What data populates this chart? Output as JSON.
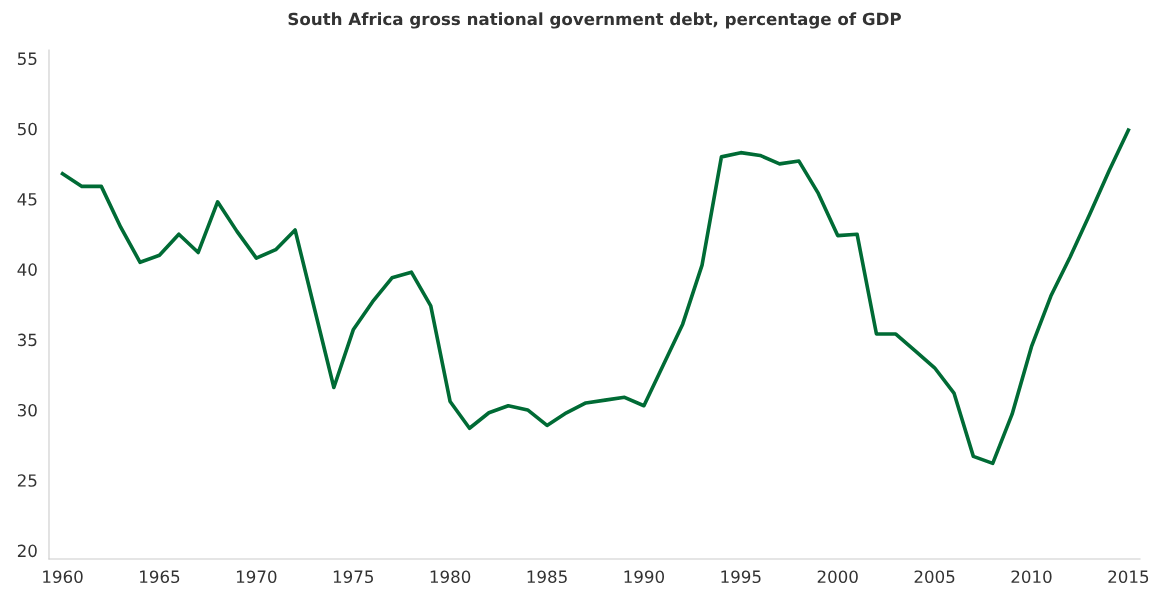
{
  "chart_data": {
    "type": "line",
    "title": "South Africa gross national government debt, percentage of GDP",
    "x": [
      1960,
      1961,
      1962,
      1963,
      1964,
      1965,
      1966,
      1967,
      1968,
      1969,
      1970,
      1971,
      1972,
      1973,
      1974,
      1975,
      1976,
      1977,
      1978,
      1979,
      1980,
      1981,
      1982,
      1983,
      1984,
      1985,
      1986,
      1987,
      1988,
      1989,
      1990,
      1991,
      1992,
      1993,
      1994,
      1995,
      1996,
      1997,
      1998,
      1999,
      2000,
      2001,
      2002,
      2003,
      2004,
      2005,
      2006,
      2007,
      2008,
      2009,
      2010,
      2011,
      2012,
      2013,
      2014,
      2015
    ],
    "series": [
      {
        "color": "#006b35",
        "values": [
          46.8,
          45.9,
          45.9,
          43.0,
          40.5,
          41.0,
          42.5,
          41.2,
          44.8,
          42.7,
          40.8,
          41.4,
          42.8,
          37.2,
          31.6,
          35.7,
          37.7,
          39.4,
          39.8,
          37.4,
          30.6,
          28.7,
          29.8,
          30.3,
          30.0,
          28.9,
          29.8,
          30.5,
          30.7,
          30.9,
          30.3,
          33.2,
          36.1,
          40.3,
          48.0,
          48.3,
          48.1,
          47.5,
          47.7,
          45.4,
          42.4,
          42.5,
          35.4,
          35.4,
          34.2,
          33.0,
          31.2,
          26.7,
          26.2,
          29.7,
          34.5,
          38.1,
          40.9,
          43.9,
          47.0,
          49.9
        ]
      }
    ],
    "xlim": [
      1959.3,
      2015.6
    ],
    "xticks": [
      1960,
      1965,
      1970,
      1975,
      1980,
      1985,
      1990,
      1995,
      2000,
      2005,
      2010,
      2015
    ],
    "ylim": [
      19.4,
      55.6
    ],
    "yticks": [
      20,
      25,
      30,
      35,
      40,
      45,
      50,
      55
    ],
    "grid": false,
    "marker": "none",
    "line_style": "solid"
  }
}
